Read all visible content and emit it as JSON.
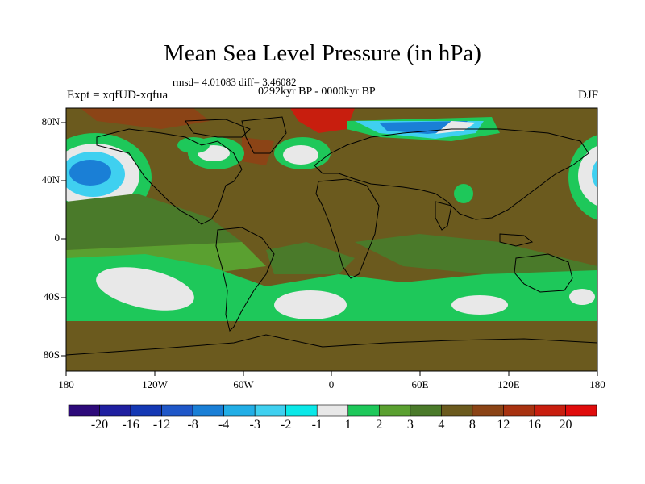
{
  "title": "Mean Sea Level Pressure (in hPa)",
  "stats": "rmsd= 4.01083 diff= 3.46082",
  "period": "0292kyr BP - 0000kyr BP",
  "experiment": "Expt = xqfUD-xqfua",
  "season": "DJF",
  "axes": {
    "y_ticks": [
      "80N",
      "40N",
      "0",
      "40S",
      "80S"
    ],
    "x_ticks": [
      "180",
      "120W",
      "60W",
      "0",
      "60E",
      "120E",
      "180"
    ]
  },
  "colorbar": {
    "labels": [
      "-20",
      "-16",
      "-12",
      "-8",
      "-4",
      "-3",
      "-2",
      "-1",
      "1",
      "2",
      "3",
      "4",
      "8",
      "12",
      "16",
      "20"
    ],
    "colors": [
      "#2d0a7a",
      "#1f1fa0",
      "#1438b4",
      "#1f57c8",
      "#1a7fd6",
      "#22aee6",
      "#3fd0f0",
      "#0be8e8",
      "#e8e8e8",
      "#1ec85a",
      "#5aa030",
      "#4a7a2a",
      "#6b5a1e",
      "#8b4416",
      "#a83210",
      "#c81e0e",
      "#e00c0c"
    ]
  },
  "colors": {
    "base_field": "#6b5a1e",
    "coast": "#000000"
  }
}
